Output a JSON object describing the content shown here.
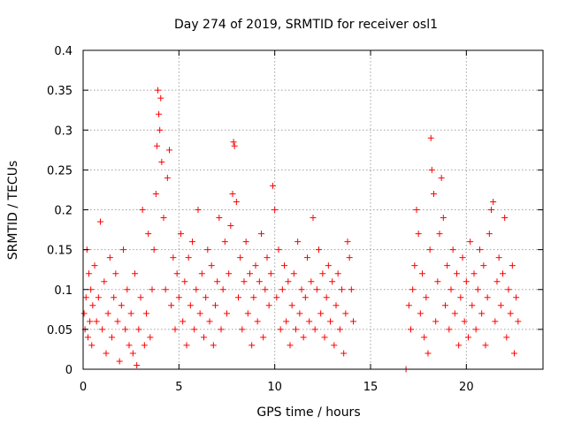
{
  "chart_data": {
    "type": "scatter",
    "title": "Day 274 of 2019, SRMTID for receiver osl1",
    "xlabel": "GPS time / hours",
    "ylabel": "SRMTID / TECUs",
    "xlim": [
      0,
      24
    ],
    "ylim": [
      0,
      0.4
    ],
    "xticks": [
      0,
      5,
      10,
      15,
      20
    ],
    "yticks": [
      0,
      0.05,
      0.1,
      0.15,
      0.2,
      0.25,
      0.3,
      0.35,
      0.4
    ],
    "xtick_labels": [
      "0",
      "5",
      "10",
      "15",
      "20"
    ],
    "ytick_labels": [
      "0",
      "0.05",
      "0.1",
      "0.15",
      "0.2",
      "0.25",
      "0.3",
      "0.35",
      "0.4"
    ],
    "grid": true,
    "marker": "plus",
    "color": "#ff0000",
    "series": [
      {
        "points": [
          [
            0.05,
            0.07
          ],
          [
            0.1,
            0.05
          ],
          [
            0.15,
            0.09
          ],
          [
            0.2,
            0.15
          ],
          [
            0.25,
            0.04
          ],
          [
            0.3,
            0.12
          ],
          [
            0.35,
            0.06
          ],
          [
            0.4,
            0.1
          ],
          [
            0.45,
            0.03
          ],
          [
            0.5,
            0.08
          ],
          [
            0.6,
            0.13
          ],
          [
            0.7,
            0.06
          ],
          [
            0.8,
            0.09
          ],
          [
            0.9,
            0.185
          ],
          [
            1.0,
            0.05
          ],
          [
            1.1,
            0.11
          ],
          [
            1.2,
            0.02
          ],
          [
            1.3,
            0.07
          ],
          [
            1.4,
            0.14
          ],
          [
            1.5,
            0.04
          ],
          [
            1.6,
            0.09
          ],
          [
            1.7,
            0.12
          ],
          [
            1.8,
            0.06
          ],
          [
            1.9,
            0.01
          ],
          [
            2.0,
            0.08
          ],
          [
            2.1,
            0.15
          ],
          [
            2.2,
            0.05
          ],
          [
            2.3,
            0.1
          ],
          [
            2.4,
            0.03
          ],
          [
            2.5,
            0.07
          ],
          [
            2.6,
            0.02
          ],
          [
            2.7,
            0.12
          ],
          [
            2.8,
            0.005
          ],
          [
            2.9,
            0.05
          ],
          [
            3.0,
            0.09
          ],
          [
            3.1,
            0.2
          ],
          [
            3.2,
            0.03
          ],
          [
            3.3,
            0.07
          ],
          [
            3.4,
            0.17
          ],
          [
            3.5,
            0.04
          ],
          [
            3.6,
            0.1
          ],
          [
            3.7,
            0.15
          ],
          [
            3.8,
            0.22
          ],
          [
            3.85,
            0.28
          ],
          [
            3.9,
            0.35
          ],
          [
            3.95,
            0.32
          ],
          [
            4.0,
            0.3
          ],
          [
            4.05,
            0.34
          ],
          [
            4.1,
            0.26
          ],
          [
            4.2,
            0.19
          ],
          [
            4.3,
            0.1
          ],
          [
            4.4,
            0.24
          ],
          [
            4.5,
            0.275
          ],
          [
            4.6,
            0.08
          ],
          [
            4.7,
            0.14
          ],
          [
            4.8,
            0.05
          ],
          [
            4.9,
            0.12
          ],
          [
            5.0,
            0.09
          ],
          [
            5.1,
            0.17
          ],
          [
            5.2,
            0.06
          ],
          [
            5.3,
            0.11
          ],
          [
            5.4,
            0.03
          ],
          [
            5.5,
            0.14
          ],
          [
            5.6,
            0.08
          ],
          [
            5.7,
            0.16
          ],
          [
            5.8,
            0.05
          ],
          [
            5.9,
            0.1
          ],
          [
            6.0,
            0.2
          ],
          [
            6.1,
            0.07
          ],
          [
            6.2,
            0.12
          ],
          [
            6.3,
            0.04
          ],
          [
            6.4,
            0.09
          ],
          [
            6.5,
            0.15
          ],
          [
            6.6,
            0.06
          ],
          [
            6.7,
            0.13
          ],
          [
            6.8,
            0.03
          ],
          [
            6.9,
            0.08
          ],
          [
            7.0,
            0.11
          ],
          [
            7.1,
            0.19
          ],
          [
            7.2,
            0.05
          ],
          [
            7.3,
            0.1
          ],
          [
            7.4,
            0.16
          ],
          [
            7.5,
            0.07
          ],
          [
            7.6,
            0.12
          ],
          [
            7.7,
            0.18
          ],
          [
            7.8,
            0.22
          ],
          [
            7.85,
            0.285
          ],
          [
            7.9,
            0.28
          ],
          [
            8.0,
            0.21
          ],
          [
            8.1,
            0.09
          ],
          [
            8.2,
            0.14
          ],
          [
            8.3,
            0.05
          ],
          [
            8.4,
            0.11
          ],
          [
            8.5,
            0.16
          ],
          [
            8.6,
            0.07
          ],
          [
            8.7,
            0.12
          ],
          [
            8.8,
            0.03
          ],
          [
            8.9,
            0.09
          ],
          [
            9.0,
            0.13
          ],
          [
            9.1,
            0.06
          ],
          [
            9.2,
            0.11
          ],
          [
            9.3,
            0.17
          ],
          [
            9.4,
            0.04
          ],
          [
            9.5,
            0.1
          ],
          [
            9.6,
            0.14
          ],
          [
            9.7,
            0.08
          ],
          [
            9.8,
            0.12
          ],
          [
            9.9,
            0.23
          ],
          [
            10.0,
            0.2
          ],
          [
            10.1,
            0.09
          ],
          [
            10.2,
            0.15
          ],
          [
            10.3,
            0.05
          ],
          [
            10.4,
            0.1
          ],
          [
            10.5,
            0.13
          ],
          [
            10.6,
            0.06
          ],
          [
            10.7,
            0.11
          ],
          [
            10.8,
            0.03
          ],
          [
            10.9,
            0.08
          ],
          [
            11.0,
            0.12
          ],
          [
            11.1,
            0.05
          ],
          [
            11.2,
            0.16
          ],
          [
            11.3,
            0.07
          ],
          [
            11.4,
            0.1
          ],
          [
            11.5,
            0.04
          ],
          [
            11.6,
            0.09
          ],
          [
            11.7,
            0.14
          ],
          [
            11.8,
            0.06
          ],
          [
            11.9,
            0.11
          ],
          [
            12.0,
            0.19
          ],
          [
            12.1,
            0.05
          ],
          [
            12.2,
            0.1
          ],
          [
            12.3,
            0.15
          ],
          [
            12.4,
            0.07
          ],
          [
            12.5,
            0.12
          ],
          [
            12.6,
            0.04
          ],
          [
            12.7,
            0.09
          ],
          [
            12.8,
            0.13
          ],
          [
            12.9,
            0.06
          ],
          [
            13.0,
            0.11
          ],
          [
            13.1,
            0.03
          ],
          [
            13.2,
            0.08
          ],
          [
            13.3,
            0.12
          ],
          [
            13.4,
            0.05
          ],
          [
            13.5,
            0.1
          ],
          [
            13.6,
            0.02
          ],
          [
            13.7,
            0.07
          ],
          [
            13.8,
            0.16
          ],
          [
            13.9,
            0.14
          ],
          [
            14.0,
            0.1
          ],
          [
            14.1,
            0.06
          ],
          [
            16.85,
            0.0
          ],
          [
            17.0,
            0.08
          ],
          [
            17.1,
            0.05
          ],
          [
            17.2,
            0.1
          ],
          [
            17.3,
            0.13
          ],
          [
            17.4,
            0.2
          ],
          [
            17.5,
            0.17
          ],
          [
            17.6,
            0.07
          ],
          [
            17.7,
            0.12
          ],
          [
            17.8,
            0.04
          ],
          [
            17.9,
            0.09
          ],
          [
            18.0,
            0.02
          ],
          [
            18.1,
            0.15
          ],
          [
            18.15,
            0.29
          ],
          [
            18.2,
            0.25
          ],
          [
            18.3,
            0.22
          ],
          [
            18.4,
            0.06
          ],
          [
            18.5,
            0.11
          ],
          [
            18.6,
            0.17
          ],
          [
            18.7,
            0.24
          ],
          [
            18.8,
            0.19
          ],
          [
            18.9,
            0.08
          ],
          [
            19.0,
            0.13
          ],
          [
            19.1,
            0.05
          ],
          [
            19.2,
            0.1
          ],
          [
            19.3,
            0.15
          ],
          [
            19.4,
            0.07
          ],
          [
            19.5,
            0.12
          ],
          [
            19.6,
            0.03
          ],
          [
            19.7,
            0.09
          ],
          [
            19.8,
            0.14
          ],
          [
            19.9,
            0.06
          ],
          [
            20.0,
            0.11
          ],
          [
            20.1,
            0.04
          ],
          [
            20.2,
            0.16
          ],
          [
            20.3,
            0.08
          ],
          [
            20.4,
            0.12
          ],
          [
            20.5,
            0.05
          ],
          [
            20.6,
            0.1
          ],
          [
            20.7,
            0.15
          ],
          [
            20.8,
            0.07
          ],
          [
            20.9,
            0.13
          ],
          [
            21.0,
            0.03
          ],
          [
            21.1,
            0.09
          ],
          [
            21.2,
            0.17
          ],
          [
            21.3,
            0.2
          ],
          [
            21.4,
            0.21
          ],
          [
            21.5,
            0.06
          ],
          [
            21.6,
            0.11
          ],
          [
            21.7,
            0.14
          ],
          [
            21.8,
            0.08
          ],
          [
            21.9,
            0.12
          ],
          [
            22.0,
            0.19
          ],
          [
            22.1,
            0.04
          ],
          [
            22.2,
            0.1
          ],
          [
            22.3,
            0.07
          ],
          [
            22.4,
            0.13
          ],
          [
            22.5,
            0.02
          ],
          [
            22.6,
            0.09
          ],
          [
            22.7,
            0.06
          ]
        ]
      }
    ]
  }
}
